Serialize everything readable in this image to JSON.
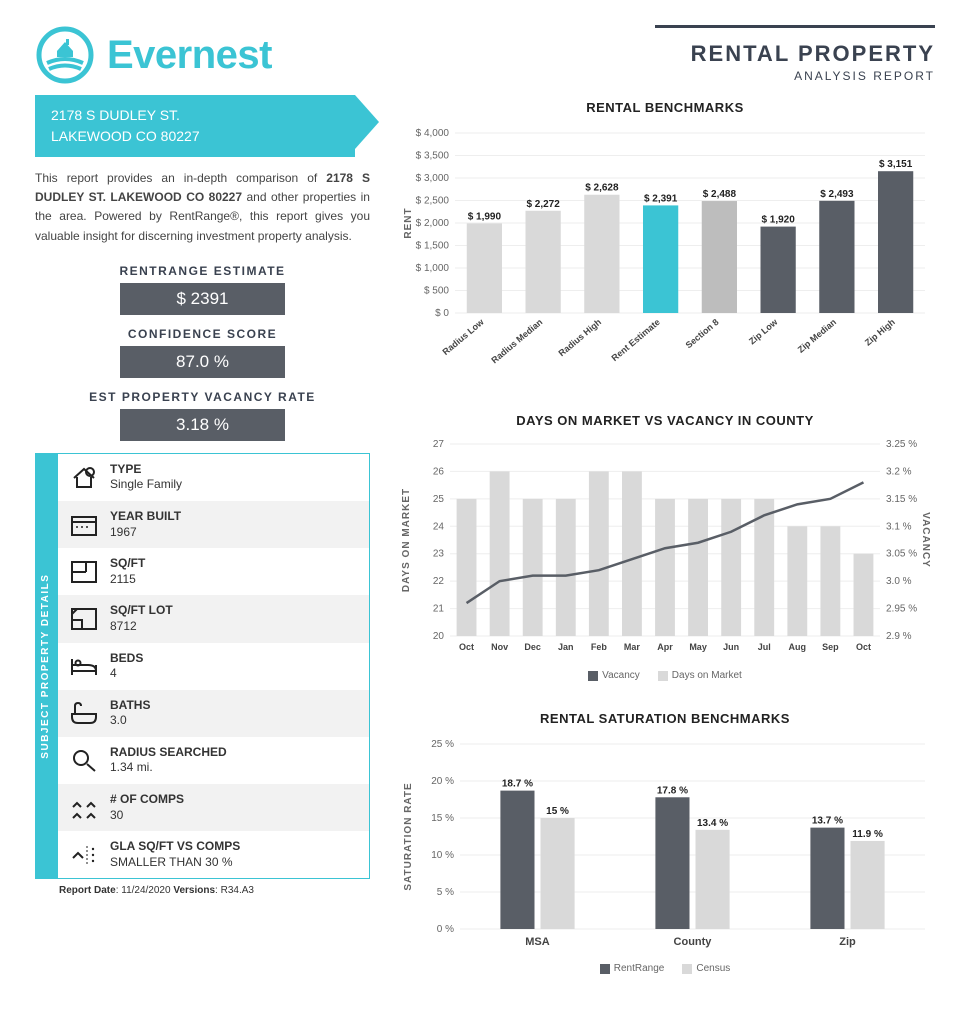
{
  "logo_text": "Evernest",
  "report_title": "RENTAL PROPERTY",
  "report_subtitle": "ANALYSIS REPORT",
  "address_line1": "2178 S DUDLEY ST.",
  "address_line2": "LAKEWOOD CO 80227",
  "intro_prefix": "This report provides an in-depth comparison of ",
  "intro_bold": "2178 S DUDLEY ST. LAKEWOOD CO 80227",
  "intro_suffix": " and other properties in the area. Powered by RentRange®, this report gives you valuable insight for discerning investment property analysis.",
  "metrics": [
    {
      "label": "RENTRANGE ESTIMATE",
      "value": "$ 2391"
    },
    {
      "label": "CONFIDENCE SCORE",
      "value": "87.0 %"
    },
    {
      "label": "EST PROPERTY VACANCY RATE",
      "value": "3.18 %"
    }
  ],
  "details_sidebar": "SUBJECT PROPERTY DETAILS",
  "details": [
    {
      "label": "TYPE",
      "value": "Single Family",
      "icon": "house"
    },
    {
      "label": "YEAR BUILT",
      "value": "1967",
      "icon": "calendar"
    },
    {
      "label": "SQ/FT",
      "value": "2115",
      "icon": "floorplan"
    },
    {
      "label": "SQ/FT LOT",
      "value": "8712",
      "icon": "lot"
    },
    {
      "label": "BEDS",
      "value": "4",
      "icon": "bed"
    },
    {
      "label": "BATHS",
      "value": "3.0",
      "icon": "bath"
    },
    {
      "label": "RADIUS SEARCHED",
      "value": "1.34 mi.",
      "icon": "search"
    },
    {
      "label": "# OF COMPS",
      "value": "30",
      "icon": "comps"
    },
    {
      "label": "GLA SQ/FT VS COMPS",
      "value": "SMALLER THAN 30 %",
      "icon": "compare"
    }
  ],
  "report_date_label": "Report Date",
  "report_date": "11/24/2020",
  "versions_label": "Versions",
  "versions": "R34.A3",
  "colors": {
    "accent": "#3bc4d4",
    "dark_gray": "#595e66",
    "light_bar": "#d9d9d9",
    "grid": "#eeeeee"
  },
  "chart1": {
    "title": "RENTAL BENCHMARKS",
    "ylabel": "RENT",
    "ymax": 4000,
    "ytick_step": 500,
    "bars": [
      {
        "cat": "Radius Low",
        "val": 1990,
        "color": "#d9d9d9"
      },
      {
        "cat": "Radius Median",
        "val": 2272,
        "color": "#d9d9d9"
      },
      {
        "cat": "Radius High",
        "val": 2628,
        "color": "#d9d9d9"
      },
      {
        "cat": "Rent Estimate",
        "val": 2391,
        "color": "#3bc4d4"
      },
      {
        "cat": "Section 8",
        "val": 2488,
        "color": "#bdbdbd"
      },
      {
        "cat": "Zip Low",
        "val": 1920,
        "color": "#595e66"
      },
      {
        "cat": "Zip Median",
        "val": 2493,
        "color": "#595e66"
      },
      {
        "cat": "Zip High",
        "val": 3151,
        "color": "#595e66"
      }
    ]
  },
  "chart2": {
    "title": "DAYS ON MARKET VS VACANCY IN COUNTY",
    "ylabel_left": "DAYS ON MARKET",
    "ylabel_right": "VACANCY",
    "y1_min": 20,
    "y1_max": 27,
    "y2_min": 2.9,
    "y2_max": 3.25,
    "months": [
      "Oct",
      "Nov",
      "Dec",
      "Jan",
      "Feb",
      "Mar",
      "Apr",
      "May",
      "Jun",
      "Jul",
      "Aug",
      "Sep",
      "Oct"
    ],
    "days_bars": [
      25,
      26,
      25,
      25,
      26,
      26,
      25,
      25,
      25,
      25,
      24,
      24,
      23
    ],
    "vacancy_line": [
      2.96,
      3.0,
      3.01,
      3.01,
      3.02,
      3.04,
      3.06,
      3.07,
      3.09,
      3.12,
      3.14,
      3.15,
      3.18
    ],
    "bar_color": "#d9d9d9",
    "line_color": "#595e66",
    "legend": [
      {
        "label": "Vacancy",
        "color": "#595e66"
      },
      {
        "label": "Days on Market",
        "color": "#d9d9d9"
      }
    ]
  },
  "chart3": {
    "title": "RENTAL SATURATION BENCHMARKS",
    "ylabel": "SATURATION RATE",
    "ymax": 25,
    "ytick_step": 5,
    "groups": [
      "MSA",
      "County",
      "Zip"
    ],
    "series": [
      {
        "name": "RentRange",
        "color": "#595e66",
        "vals": [
          18.7,
          17.8,
          13.7
        ]
      },
      {
        "name": "Census",
        "color": "#d9d9d9",
        "vals": [
          15,
          13.4,
          11.9
        ]
      }
    ]
  }
}
